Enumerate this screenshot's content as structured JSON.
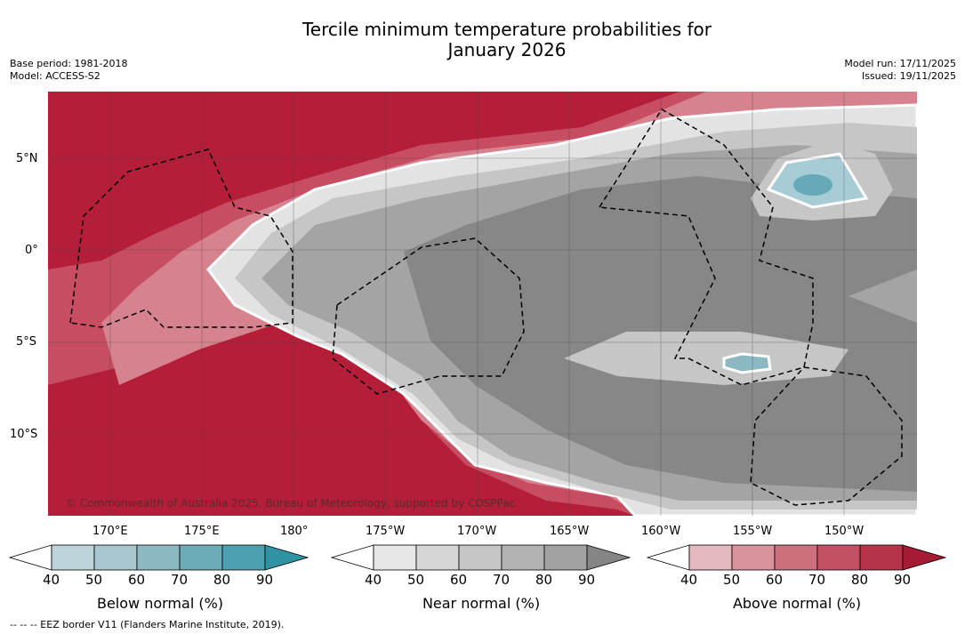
{
  "title_line1": "Tercile minimum temperature probabilities for",
  "title_line2": "January 2026",
  "meta_left": {
    "base_period": "Base period: 1981-2018",
    "model": "Model: ACCESS-S2"
  },
  "meta_right": {
    "model_run": "Model run: 17/11/2025",
    "issued": "Issued: 19/11/2025"
  },
  "map": {
    "lat_labels": [
      "5°N",
      "0°",
      "5°S",
      "10°S"
    ],
    "lon_labels": [
      "170°E",
      "175°E",
      "180°",
      "175°W",
      "170°W",
      "165°W",
      "160°W",
      "155°W",
      "150°W"
    ],
    "copyright": "© Commonwealth of Australia 2025, Bureau of Meteorology, supported by COSPPac",
    "colors": {
      "above_dark": "#b41e39",
      "near_mid": "#a4a4a4",
      "near_dark": "#868686",
      "below": "#66a9b8"
    }
  },
  "colorbars": [
    {
      "label": "Below normal (%)",
      "ticks": [
        "40",
        "50",
        "60",
        "70",
        "80",
        "90"
      ],
      "colors": [
        "#bdd3da",
        "#a7c7cf",
        "#8bb8c3",
        "#6cabb8",
        "#4da0af",
        "#2f93a4"
      ]
    },
    {
      "label": "Near normal (%)",
      "ticks": [
        "40",
        "50",
        "60",
        "70",
        "80",
        "90"
      ],
      "colors": [
        "#e6e6e6",
        "#d6d6d6",
        "#c6c6c6",
        "#b3b3b3",
        "#a2a2a2",
        "#858585"
      ]
    },
    {
      "label": "Above normal (%)",
      "ticks": [
        "40",
        "50",
        "60",
        "70",
        "80",
        "90"
      ],
      "colors": [
        "#e5b9c0",
        "#d9939c",
        "#cc707d",
        "#c25163",
        "#b5344a",
        "#a51a35"
      ]
    }
  ],
  "footnote": "--  --  -- EEZ border V11 (Flanders Marine Institute, 2019)."
}
